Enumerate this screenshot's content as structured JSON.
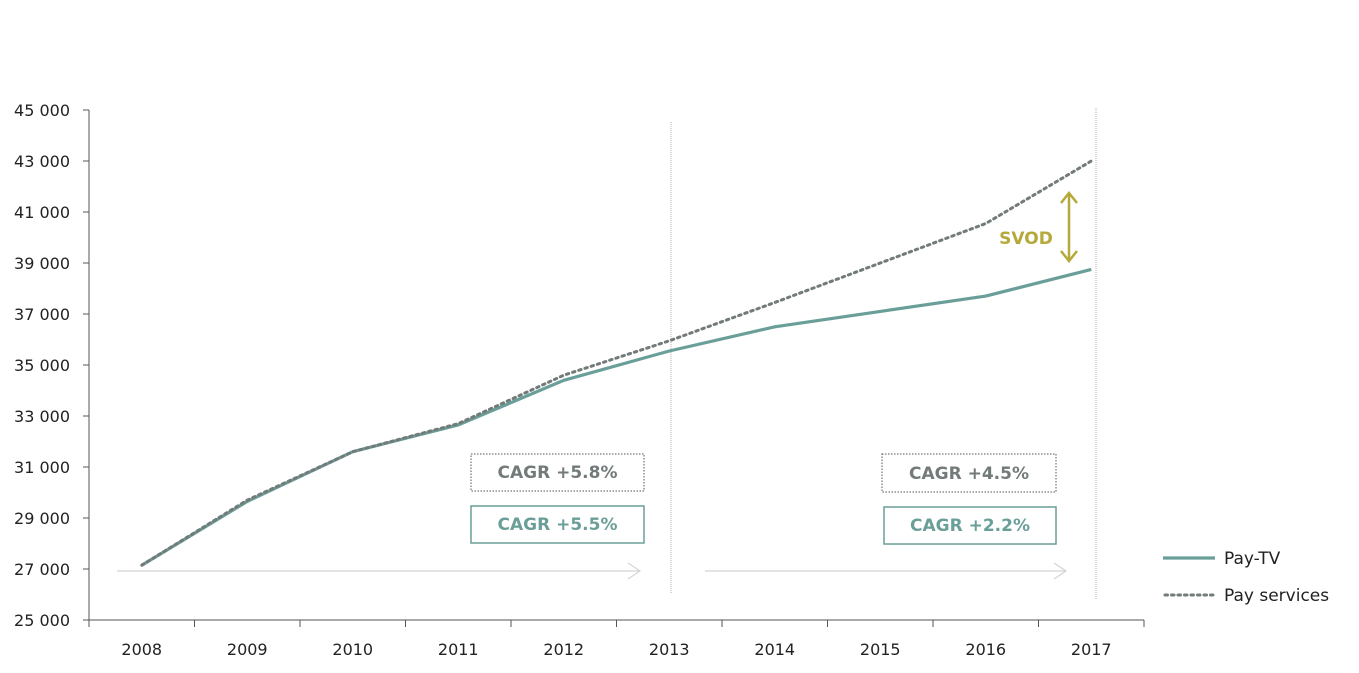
{
  "chart_data": {
    "type": "line",
    "x": [
      "2008",
      "2009",
      "2010",
      "2011",
      "2012",
      "2013",
      "2014",
      "2015",
      "2016",
      "2017"
    ],
    "ylim": [
      25000,
      45000
    ],
    "yticks": [
      "25 000",
      "27 000",
      "29 000",
      "31 000",
      "33 000",
      "35 000",
      "37 000",
      "39 000",
      "41 000",
      "43 000",
      "45 000"
    ],
    "yticks_values": [
      25000,
      27000,
      29000,
      31000,
      33000,
      35000,
      37000,
      39000,
      41000,
      43000,
      45000
    ],
    "grid": false,
    "legend_position": "bottom-right",
    "series": [
      {
        "name": "Pay-TV",
        "style": "solid",
        "color": "#6a9f99",
        "values": [
          27150,
          29650,
          31600,
          32650,
          34400,
          35550,
          36500,
          37100,
          37700,
          38750
        ]
      },
      {
        "name": "Pay services",
        "style": "dotted",
        "color": "#737a7a",
        "values": [
          27150,
          29700,
          31600,
          32700,
          34600,
          35950,
          37450,
          39000,
          40550,
          43000
        ]
      }
    ],
    "annotations": {
      "svod_label": "SVOD",
      "svod_color": "#b5a93a",
      "cagr_left_pay_services": "CAGR +5.8%",
      "cagr_left_paytv": "CAGR +5.5%",
      "cagr_right_pay_services": "CAGR +4.5%",
      "cagr_right_paytv": "CAGR +2.2%"
    }
  }
}
